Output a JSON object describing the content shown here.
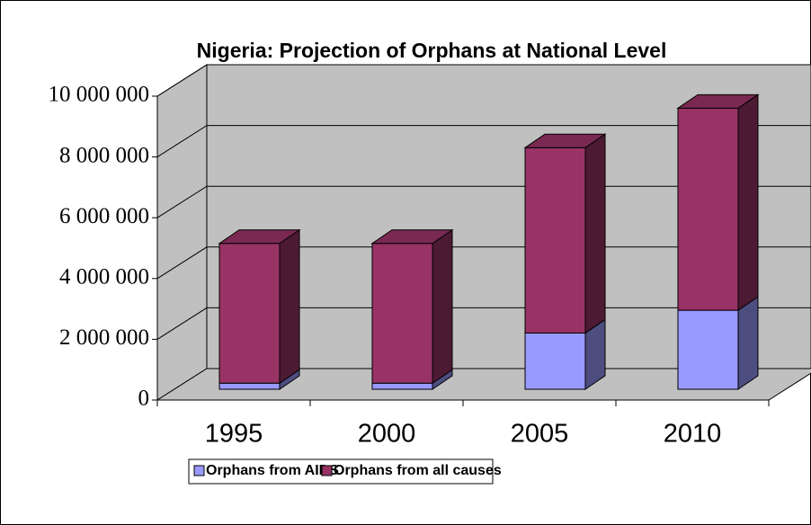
{
  "chart_data": {
    "type": "bar3d_stacked",
    "title": "Nigeria: Projection of Orphans at National Level",
    "categories": [
      "1995",
      "2000",
      "2005",
      "2010"
    ],
    "series": [
      {
        "name": "Orphans from AIDS",
        "color": "#9999ff",
        "values": [
          200000,
          200000,
          1850000,
          2600000
        ]
      },
      {
        "name": "Orphans from all causes",
        "color": "#993366",
        "values": [
          4600000,
          4600000,
          6100000,
          6650000
        ]
      }
    ],
    "ylim": [
      0,
      10000000
    ],
    "yticks": [
      0,
      {
        "value": 2000000,
        "label": "2 000 000"
      },
      {
        "value": 4000000,
        "label": "4 000 000"
      },
      {
        "value": 6000000,
        "label": "6 000 000"
      },
      {
        "value": 8000000,
        "label": "8 000 000"
      },
      {
        "value": 10000000,
        "label": "10 000 000"
      }
    ],
    "grid": true,
    "legend": "bottom"
  }
}
